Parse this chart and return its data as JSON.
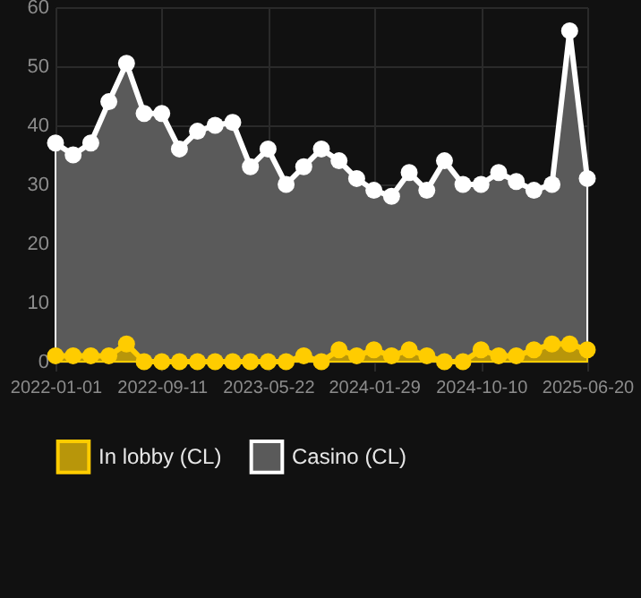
{
  "chart_data": {
    "type": "area",
    "x": [
      "2022-01-01",
      "2022-02-12",
      "2022-03-26",
      "2022-05-08",
      "2022-06-19",
      "2022-07-31",
      "2022-09-11",
      "2022-10-23",
      "2022-12-05",
      "2023-01-16",
      "2023-02-27",
      "2023-04-10",
      "2023-05-22",
      "2023-07-04",
      "2023-08-15",
      "2023-09-26",
      "2023-11-07",
      "2023-12-19",
      "2024-01-29",
      "2024-03-11",
      "2024-04-22",
      "2024-06-03",
      "2024-07-15",
      "2024-08-28",
      "2024-10-10",
      "2024-11-21",
      "2025-01-02",
      "2025-02-13",
      "2025-03-28",
      "2025-05-09",
      "2025-06-20"
    ],
    "series": [
      {
        "name": "In lobby (CL)",
        "color": "#ffcc00",
        "values": [
          1,
          1,
          1,
          1,
          3,
          0,
          0,
          0,
          0,
          0,
          0,
          0,
          0,
          0,
          1,
          0,
          2,
          1,
          2,
          1,
          2,
          1,
          0,
          0,
          2,
          1,
          1,
          2,
          3,
          3,
          2
        ]
      },
      {
        "name": "Casino (CL)",
        "color": "#ffffff",
        "values": [
          37,
          35,
          37,
          44,
          50.5,
          42,
          42,
          36,
          39,
          40,
          40.5,
          33,
          36,
          30,
          33,
          36,
          34,
          31,
          29,
          28,
          32,
          29,
          34,
          30,
          30,
          32,
          30.5,
          29,
          30,
          56,
          31
        ]
      }
    ],
    "xlim": [
      "2022-01-01",
      "2025-06-20"
    ],
    "xticks": [
      "2022-01-01",
      "2022-09-11",
      "2023-05-22",
      "2024-01-29",
      "2024-10-10",
      "2025-06-20"
    ],
    "ylim": [
      0,
      60
    ],
    "yticks": [
      0,
      10,
      20,
      30,
      40,
      50,
      60
    ],
    "grid": true,
    "legend": "bottom",
    "marker": "circle",
    "line_style": "solid"
  }
}
